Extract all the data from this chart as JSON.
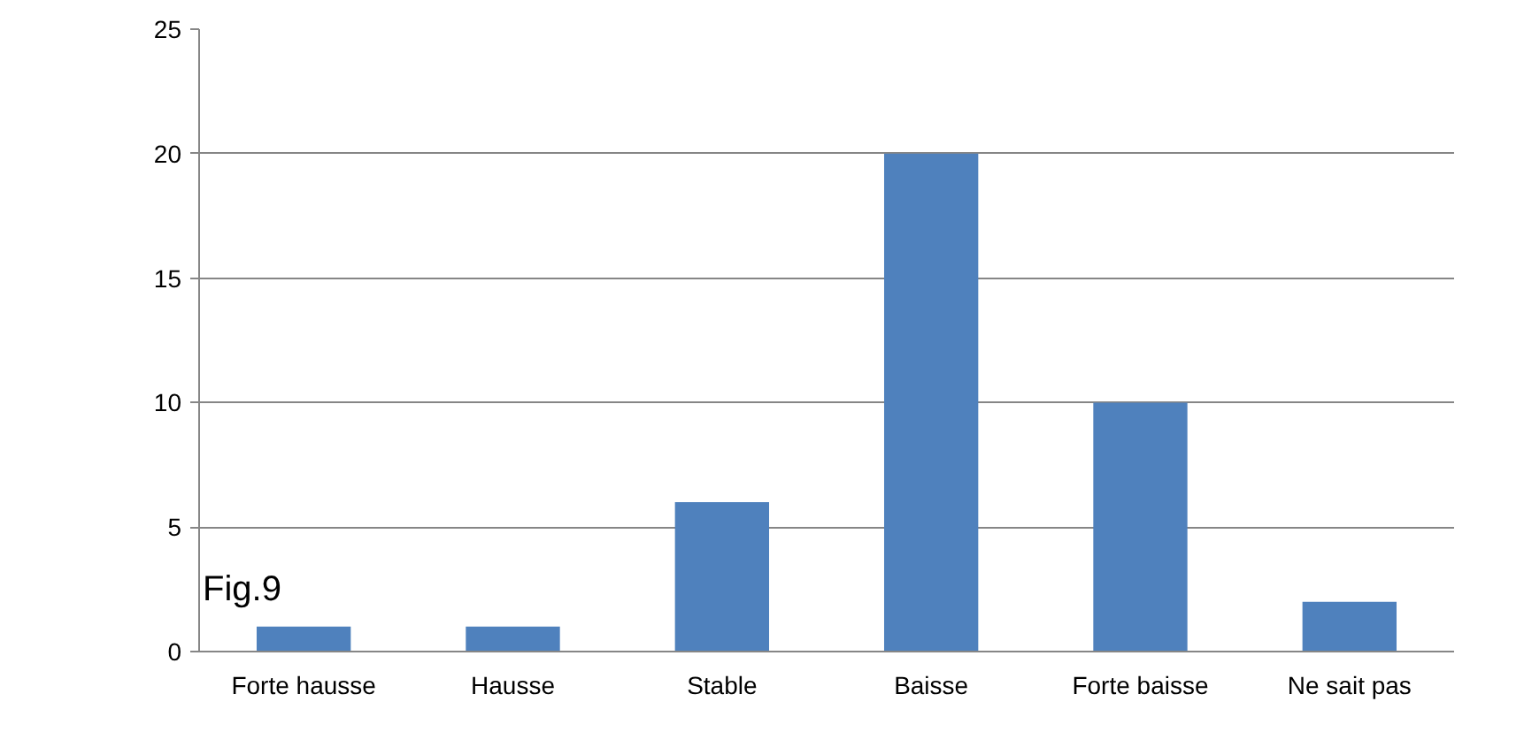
{
  "chart_data": {
    "type": "bar",
    "categories": [
      "Forte hausse",
      "Hausse",
      "Stable",
      "Baisse",
      "Forte baisse",
      "Ne sait pas"
    ],
    "values": [
      1,
      1,
      6,
      20,
      10,
      2
    ],
    "color": "#4f81bd",
    "ylim": [
      0,
      25
    ],
    "yticks": [
      0,
      5,
      10,
      15,
      20,
      25
    ],
    "grid": "y",
    "annotations": [
      "Fig.9"
    ]
  }
}
